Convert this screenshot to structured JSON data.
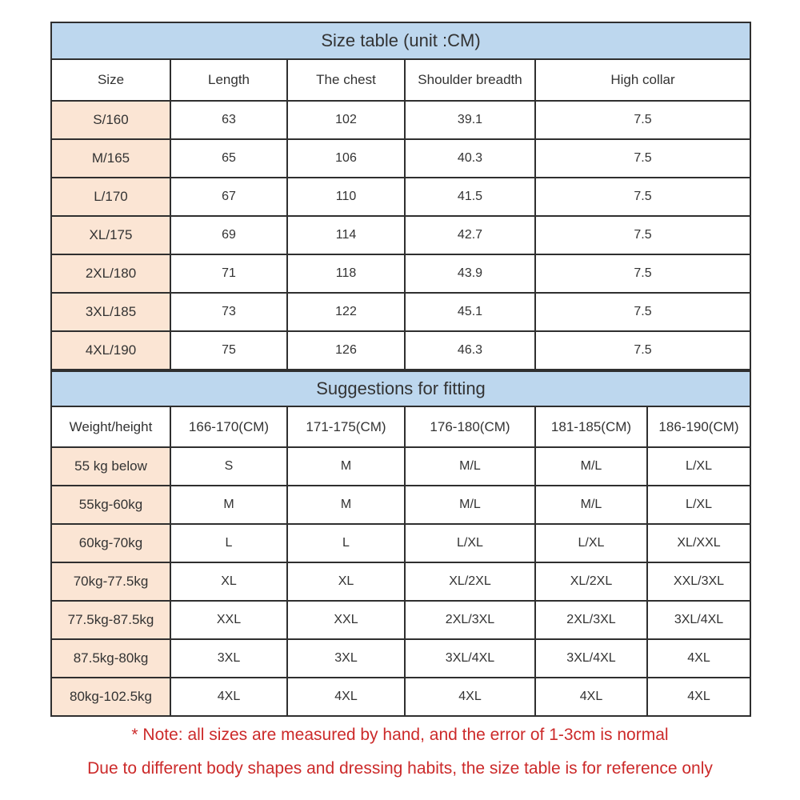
{
  "colors": {
    "band_blue": "#BDD7EE",
    "row_peach": "#FBE5D4",
    "border": "#2f2f2f",
    "note_red": "#CC2A2A"
  },
  "size_table": {
    "title": "Size table (unit :CM)",
    "columns": [
      "Size",
      "Length",
      "The chest",
      "Shoulder breadth",
      "High collar"
    ],
    "rows": [
      [
        "S/160",
        "63",
        "102",
        "39.1",
        "7.5"
      ],
      [
        "M/165",
        "65",
        "106",
        "40.3",
        "7.5"
      ],
      [
        "L/170",
        "67",
        "110",
        "41.5",
        "7.5"
      ],
      [
        "XL/175",
        "69",
        "114",
        "42.7",
        "7.5"
      ],
      [
        "2XL/180",
        "71",
        "118",
        "43.9",
        "7.5"
      ],
      [
        "3XL/185",
        "73",
        "122",
        "45.1",
        "7.5"
      ],
      [
        "4XL/190",
        "75",
        "126",
        "46.3",
        "7.5"
      ]
    ]
  },
  "fitting_table": {
    "title": "Suggestions for fitting",
    "columns": [
      "Weight/height",
      "166-170(CM)",
      "171-175(CM)",
      "176-180(CM)",
      "181-185(CM)",
      "186-190(CM)"
    ],
    "rows": [
      [
        "55 kg below",
        "S",
        "M",
        "M/L",
        "M/L",
        "L/XL"
      ],
      [
        "55kg-60kg",
        "M",
        "M",
        "M/L",
        "M/L",
        "L/XL"
      ],
      [
        "60kg-70kg",
        "L",
        "L",
        "L/XL",
        "L/XL",
        "XL/XXL"
      ],
      [
        "70kg-77.5kg",
        "XL",
        "XL",
        "XL/2XL",
        "XL/2XL",
        "XXL/3XL"
      ],
      [
        "77.5kg-87.5kg",
        "XXL",
        "XXL",
        "2XL/3XL",
        "2XL/3XL",
        "3XL/4XL"
      ],
      [
        "87.5kg-80kg",
        "3XL",
        "3XL",
        "3XL/4XL",
        "3XL/4XL",
        "4XL"
      ],
      [
        "80kg-102.5kg",
        "4XL",
        "4XL",
        "4XL",
        "4XL",
        "4XL"
      ]
    ]
  },
  "notes": {
    "line1": "* Note: all sizes are measured by hand, and the error of 1-3cm is normal",
    "line2": "Due to different body shapes and dressing habits, the size table is for reference only"
  }
}
